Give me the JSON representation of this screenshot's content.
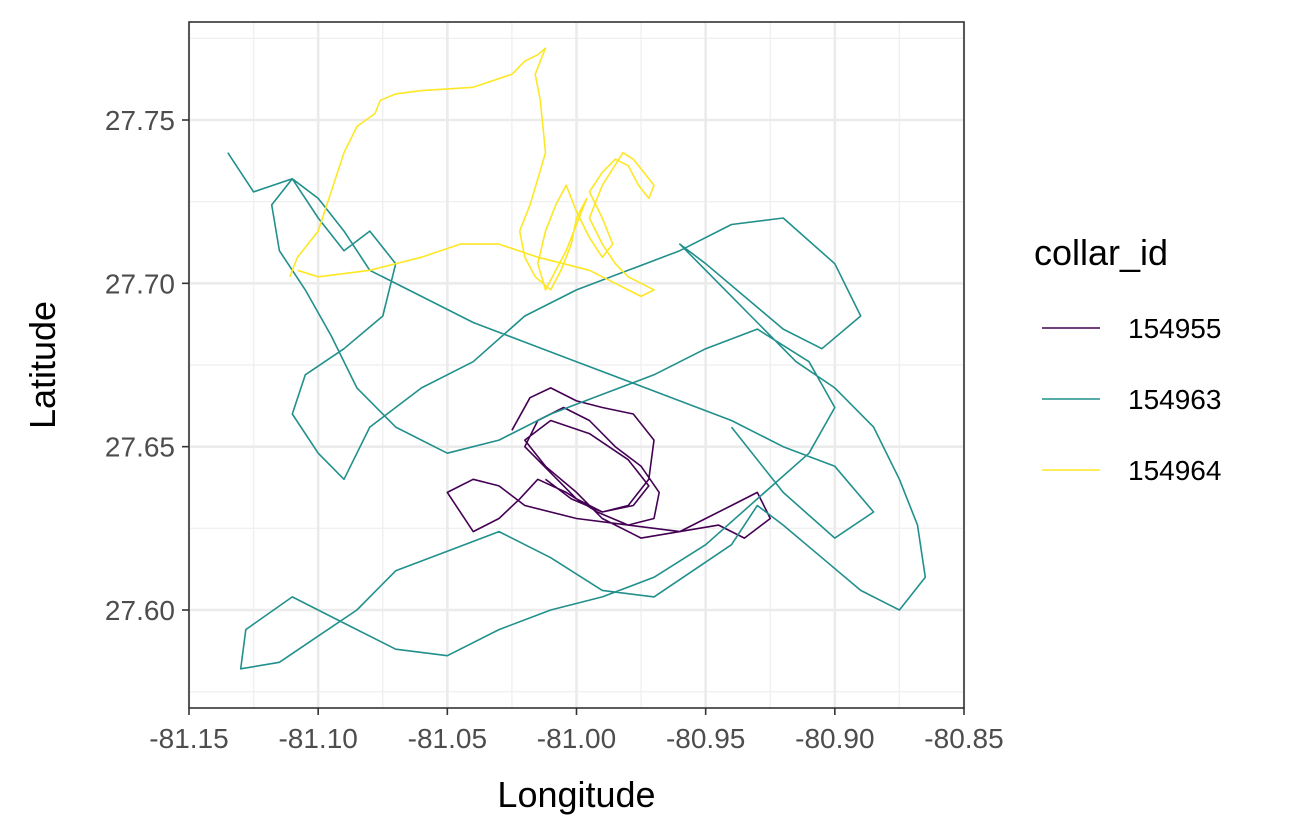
{
  "chart_data": {
    "type": "line",
    "title": "",
    "xlabel": "Longitude",
    "ylabel": "Latitude",
    "xlim": [
      -81.15,
      -80.85
    ],
    "ylim": [
      27.57,
      27.78
    ],
    "x_ticks": [
      -81.15,
      -81.1,
      -81.05,
      -81.0,
      -80.95,
      -80.9,
      -80.85
    ],
    "x_tick_labels": [
      "-81.15",
      "-81.10",
      "-81.05",
      "-81.00",
      "-80.95",
      "-80.90",
      "-80.85"
    ],
    "y_ticks": [
      27.6,
      27.65,
      27.7,
      27.75
    ],
    "y_tick_labels": [
      "27.60",
      "27.65",
      "27.70",
      "27.75"
    ],
    "grid": true,
    "legend_title": "collar_id",
    "legend_position": "right",
    "series": [
      {
        "name": "154955",
        "color": "#440154",
        "x": [
          -81.025,
          -81.018,
          -81.01,
          -81.0,
          -80.99,
          -80.978,
          -80.97,
          -80.972,
          -80.98,
          -80.99,
          -81.0,
          -81.01,
          -81.02,
          -81.015,
          -81.005,
          -80.995,
          -80.985,
          -80.975,
          -80.968,
          -80.97,
          -80.98,
          -80.992,
          -81.004,
          -81.015,
          -81.022,
          -81.03,
          -81.04,
          -81.05,
          -81.04,
          -81.03,
          -81.02,
          -81.0,
          -80.98,
          -80.96,
          -80.95,
          -80.94,
          -80.93,
          -80.925,
          -80.935,
          -80.945,
          -80.96,
          -80.975,
          -80.99,
          -81.0,
          -81.012,
          -81.02,
          -81.01,
          -80.995,
          -80.98,
          -80.972,
          -80.978,
          -80.99,
          -81.002,
          -81.012
        ],
        "y": [
          27.655,
          27.665,
          27.668,
          27.664,
          27.662,
          27.66,
          27.652,
          27.64,
          27.632,
          27.63,
          27.634,
          27.642,
          27.65,
          27.658,
          27.662,
          27.658,
          27.65,
          27.644,
          27.636,
          27.628,
          27.626,
          27.63,
          27.636,
          27.64,
          27.634,
          27.628,
          27.624,
          27.636,
          27.64,
          27.638,
          27.632,
          27.628,
          27.626,
          27.624,
          27.628,
          27.632,
          27.636,
          27.628,
          27.622,
          27.626,
          27.624,
          27.622,
          27.628,
          27.636,
          27.644,
          27.652,
          27.658,
          27.654,
          27.646,
          27.638,
          27.632,
          27.63,
          27.634,
          27.64
        ]
      },
      {
        "name": "154963",
        "color": "#21908c",
        "x": [
          -81.135,
          -81.125,
          -81.11,
          -81.1,
          -81.09,
          -81.08,
          -81.07,
          -81.075,
          -81.09,
          -81.105,
          -81.11,
          -81.1,
          -81.09,
          -81.08,
          -81.06,
          -81.04,
          -81.02,
          -81.0,
          -80.98,
          -80.96,
          -80.94,
          -80.92,
          -80.9,
          -80.89,
          -80.905,
          -80.92,
          -80.935,
          -80.95,
          -80.96,
          -80.945,
          -80.93,
          -80.915,
          -80.9,
          -80.885,
          -80.875,
          -80.868,
          -80.865,
          -80.875,
          -80.89,
          -80.905,
          -80.92,
          -80.93,
          -80.94,
          -80.955,
          -80.97,
          -80.99,
          -81.01,
          -81.03,
          -81.05,
          -81.07,
          -81.085,
          -81.1,
          -81.115,
          -81.13,
          -81.128,
          -81.11,
          -81.09,
          -81.07,
          -81.05,
          -81.03,
          -81.01,
          -80.99,
          -80.97,
          -80.95,
          -80.93,
          -80.91,
          -80.9,
          -80.91,
          -80.93,
          -80.95,
          -80.97,
          -80.99,
          -81.01,
          -81.03,
          -81.05,
          -81.07,
          -81.085,
          -81.095,
          -81.105,
          -81.115,
          -81.118,
          -81.11,
          -81.1,
          -81.09,
          -81.08,
          -81.06,
          -81.04,
          -81.02,
          -81.0,
          -80.98,
          -80.96,
          -80.94,
          -80.92,
          -80.9,
          -80.885,
          -80.9,
          -80.92,
          -80.94
        ],
        "y": [
          27.74,
          27.728,
          27.732,
          27.72,
          27.71,
          27.716,
          27.706,
          27.69,
          27.68,
          27.672,
          27.66,
          27.648,
          27.64,
          27.656,
          27.668,
          27.676,
          27.69,
          27.698,
          27.704,
          27.71,
          27.718,
          27.72,
          27.706,
          27.69,
          27.68,
          27.686,
          27.696,
          27.706,
          27.712,
          27.7,
          27.688,
          27.676,
          27.668,
          27.656,
          27.64,
          27.626,
          27.61,
          27.6,
          27.606,
          27.616,
          27.626,
          27.632,
          27.62,
          27.612,
          27.604,
          27.606,
          27.616,
          27.624,
          27.618,
          27.612,
          27.6,
          27.592,
          27.584,
          27.582,
          27.594,
          27.604,
          27.596,
          27.588,
          27.586,
          27.594,
          27.6,
          27.604,
          27.61,
          27.62,
          27.634,
          27.648,
          27.662,
          27.676,
          27.686,
          27.68,
          27.672,
          27.666,
          27.66,
          27.652,
          27.648,
          27.656,
          27.668,
          27.684,
          27.698,
          27.71,
          27.724,
          27.732,
          27.726,
          27.716,
          27.704,
          27.696,
          27.688,
          27.682,
          27.676,
          27.67,
          27.664,
          27.658,
          27.65,
          27.644,
          27.63,
          27.622,
          27.636,
          27.656
        ]
      },
      {
        "name": "154964",
        "color": "#fde725",
        "x": [
          -81.111,
          -81.108,
          -81.1,
          -81.095,
          -81.09,
          -81.085,
          -81.078,
          -81.076,
          -81.07,
          -81.06,
          -81.04,
          -81.025,
          -81.02,
          -81.015,
          -81.012,
          -81.016,
          -81.014,
          -81.013,
          -81.012,
          -81.015,
          -81.018,
          -81.022,
          -81.02,
          -81.016,
          -81.01,
          -81.006,
          -81.002,
          -81.0,
          -80.996,
          -81.0,
          -81.004,
          -81.008,
          -81.012,
          -81.015,
          -81.012,
          -81.008,
          -81.004,
          -81.0,
          -80.995,
          -80.99,
          -80.986,
          -80.99,
          -80.995,
          -80.99,
          -80.985,
          -80.98,
          -80.976,
          -80.972,
          -80.97,
          -80.974,
          -80.978,
          -80.982,
          -80.99,
          -80.995,
          -80.99,
          -80.985,
          -80.98,
          -80.975,
          -80.97,
          -80.975,
          -80.985,
          -80.995,
          -81.005,
          -81.015,
          -81.03,
          -81.045,
          -81.06,
          -81.08,
          -81.1,
          -81.108
        ],
        "y": [
          27.702,
          27.708,
          27.716,
          27.728,
          27.74,
          27.748,
          27.752,
          27.756,
          27.758,
          27.759,
          27.76,
          27.764,
          27.768,
          27.77,
          27.772,
          27.764,
          27.756,
          27.748,
          27.74,
          27.732,
          27.724,
          27.716,
          27.708,
          27.702,
          27.698,
          27.704,
          27.712,
          27.72,
          27.726,
          27.718,
          27.71,
          27.704,
          27.698,
          27.706,
          27.716,
          27.724,
          27.73,
          27.722,
          27.714,
          27.708,
          27.712,
          27.72,
          27.728,
          27.734,
          27.738,
          27.736,
          27.73,
          27.726,
          27.73,
          27.734,
          27.738,
          27.74,
          27.73,
          27.72,
          27.712,
          27.706,
          27.702,
          27.7,
          27.698,
          27.696,
          27.7,
          27.704,
          27.706,
          27.708,
          27.712,
          27.712,
          27.708,
          27.704,
          27.702,
          27.704
        ]
      }
    ]
  }
}
